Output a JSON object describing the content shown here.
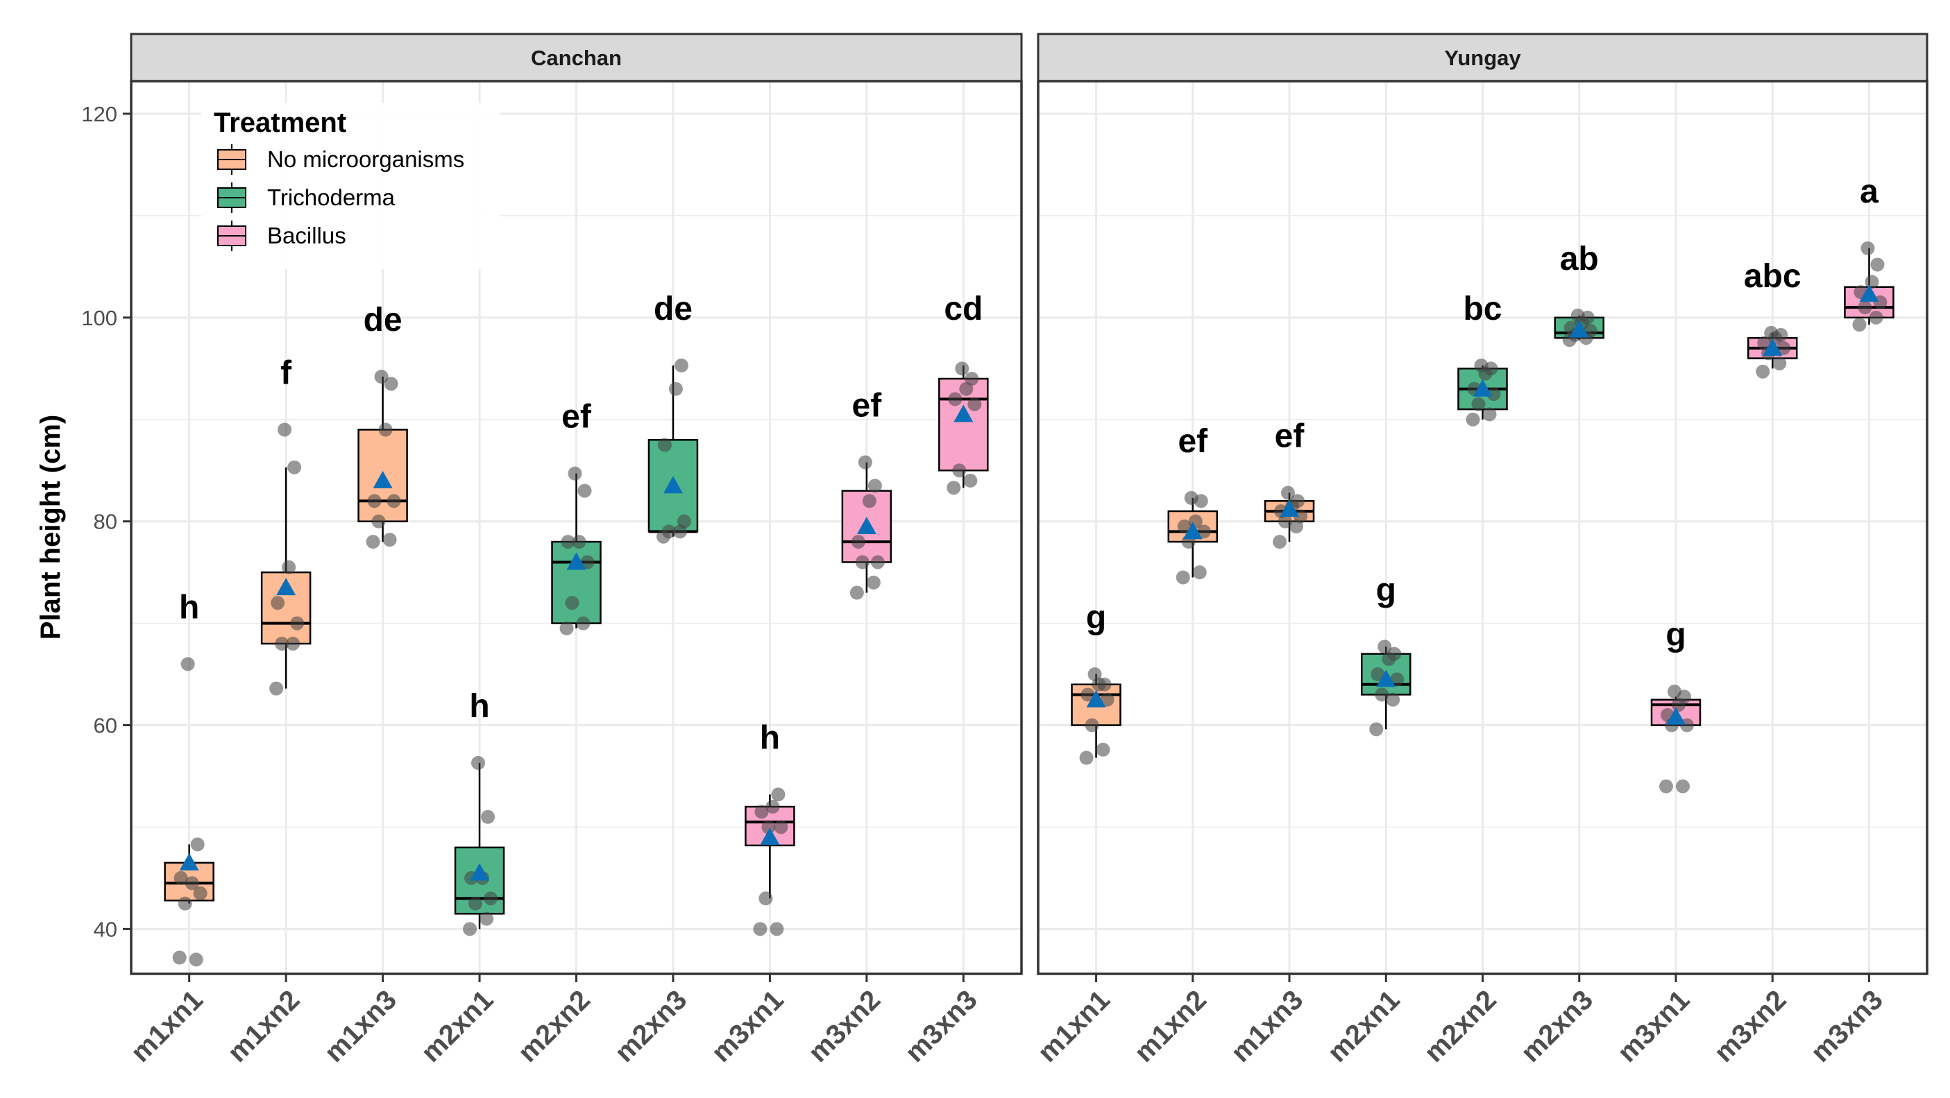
{
  "chart_data": {
    "type": "box",
    "ylabel": "Plant height (cm)",
    "xlabel": "",
    "ylim": [
      35.6,
      123.2
    ],
    "yticks": [
      40,
      60,
      80,
      100,
      120
    ],
    "grid": true,
    "legend": {
      "title": "Treatment",
      "placement": "top-left",
      "entries": [
        {
          "name": "No microorganisms",
          "color": "#FDBB96"
        },
        {
          "name": "Trichoderma",
          "color": "#4FB487"
        },
        {
          "name": "Bacillus",
          "color": "#F9A5C9"
        }
      ]
    },
    "mean_marker_color": "#0A6FB8",
    "categories": [
      "m1xn1",
      "m1xn2",
      "m1xn3",
      "m2xn1",
      "m2xn2",
      "m2xn3",
      "m3xn1",
      "m3xn2",
      "m3xn3"
    ],
    "treatment_of_category": [
      0,
      0,
      0,
      1,
      1,
      1,
      2,
      2,
      2
    ],
    "panels": [
      {
        "title": "Canchan",
        "boxes": [
          {
            "q1": 42.8,
            "median": 44.5,
            "q3": 46.5,
            "low": 42.5,
            "high": 48.3,
            "mean": 46.5,
            "points": [
              37.2,
              37.0,
              42.5,
              43.5,
              45.0,
              44.5,
              48.3,
              66.0
            ],
            "label": "h"
          },
          {
            "q1": 68,
            "median": 70,
            "q3": 75,
            "low": 63.6,
            "high": 85.3,
            "mean": 73.5,
            "points": [
              63.6,
              68,
              68,
              70,
              72,
              75.5,
              85.3,
              89
            ],
            "label": "f"
          },
          {
            "q1": 80,
            "median": 82,
            "q3": 89,
            "low": 78,
            "high": 94.2,
            "mean": 84,
            "points": [
              78,
              78.2,
              80,
              82,
              82,
              89,
              93.5,
              94.2
            ],
            "label": "de"
          },
          {
            "q1": 41.5,
            "median": 43,
            "q3": 48,
            "low": 40,
            "high": 56.3,
            "mean": 45.5,
            "points": [
              40,
              41,
              42.5,
              43,
              45,
              45,
              51,
              56.3
            ],
            "label": "h"
          },
          {
            "q1": 70,
            "median": 76,
            "q3": 78,
            "low": 69.5,
            "high": 84.7,
            "mean": 76,
            "points": [
              69.5,
              70,
              72,
              76,
              78,
              78,
              83,
              84.7
            ],
            "label": "ef"
          },
          {
            "q1": 79,
            "median": 79,
            "q3": 88,
            "low": 78.5,
            "high": 95.3,
            "mean": 83.5,
            "points": [
              78.5,
              79,
              79,
              80,
              87.5,
              93,
              95.3
            ],
            "label": "de"
          },
          {
            "q1": 48.2,
            "median": 50.5,
            "q3": 52,
            "low": 43,
            "high": 53.2,
            "mean": 49,
            "points": [
              40,
              40,
              43,
              50,
              51.5,
              52,
              53.2,
              50
            ],
            "label": "h"
          },
          {
            "q1": 76,
            "median": 78,
            "q3": 83,
            "low": 73,
            "high": 85.8,
            "mean": 79.5,
            "points": [
              73,
              74,
              76,
              76,
              78,
              82,
              83.5,
              85.8
            ],
            "label": "ef"
          },
          {
            "q1": 85,
            "median": 92,
            "q3": 94,
            "low": 83.3,
            "high": 95.3,
            "mean": 90.5,
            "points": [
              83.3,
              84,
              85,
              91.5,
              92,
              93,
              94,
              95
            ],
            "label": "cd"
          }
        ]
      },
      {
        "title": "Yungay",
        "boxes": [
          {
            "q1": 60,
            "median": 63,
            "q3": 64,
            "low": 56.8,
            "high": 65,
            "mean": 62.5,
            "points": [
              56.8,
              57.6,
              60,
              62.5,
              63,
              64,
              64,
              65
            ],
            "label": "g"
          },
          {
            "q1": 78,
            "median": 79,
            "q3": 81,
            "low": 74.5,
            "high": 82.3,
            "mean": 79,
            "points": [
              74.5,
              75,
              78,
              79,
              79.5,
              80,
              82,
              82.3
            ],
            "label": "ef"
          },
          {
            "q1": 80,
            "median": 81,
            "q3": 82,
            "low": 78,
            "high": 82.8,
            "mean": 81.2,
            "points": [
              78,
              79.5,
              80,
              80.5,
              81,
              81.5,
              82,
              82.8
            ],
            "label": "ef"
          },
          {
            "q1": 63,
            "median": 64,
            "q3": 67,
            "low": 59.6,
            "high": 67.7,
            "mean": 64.5,
            "points": [
              59.6,
              62.5,
              63,
              64.5,
              65,
              66.5,
              67,
              67.7
            ],
            "label": "g"
          },
          {
            "q1": 91,
            "median": 93,
            "q3": 95,
            "low": 90,
            "high": 95.3,
            "mean": 93,
            "points": [
              90,
              90.5,
              91.5,
              92.5,
              93,
              94.5,
              95,
              95.3
            ],
            "label": "bc"
          },
          {
            "q1": 98,
            "median": 98.5,
            "q3": 100,
            "low": 97.8,
            "high": 100.2,
            "mean": 98.8,
            "points": [
              97.8,
              98,
              98.3,
              98.7,
              99,
              99.5,
              100,
              100.2
            ],
            "label": "ab"
          },
          {
            "q1": 60,
            "median": 62,
            "q3": 62.5,
            "low": 60,
            "high": 62.8,
            "mean": 60.8,
            "points": [
              54,
              54,
              60,
              60,
              61,
              62,
              62.8,
              63.3
            ],
            "label": "g"
          },
          {
            "q1": 96,
            "median": 97,
            "q3": 98,
            "low": 95,
            "high": 98.5,
            "mean": 97,
            "points": [
              94.7,
              95.5,
              96.5,
              97,
              97.5,
              98,
              98.3,
              98.5
            ],
            "label": "abc"
          },
          {
            "q1": 100,
            "median": 101,
            "q3": 103,
            "low": 99.3,
            "high": 106.8,
            "mean": 102.3,
            "points": [
              99.3,
              100,
              101,
              101.5,
              102.5,
              103.5,
              105.2,
              106.8
            ],
            "label": "a"
          }
        ]
      }
    ]
  }
}
